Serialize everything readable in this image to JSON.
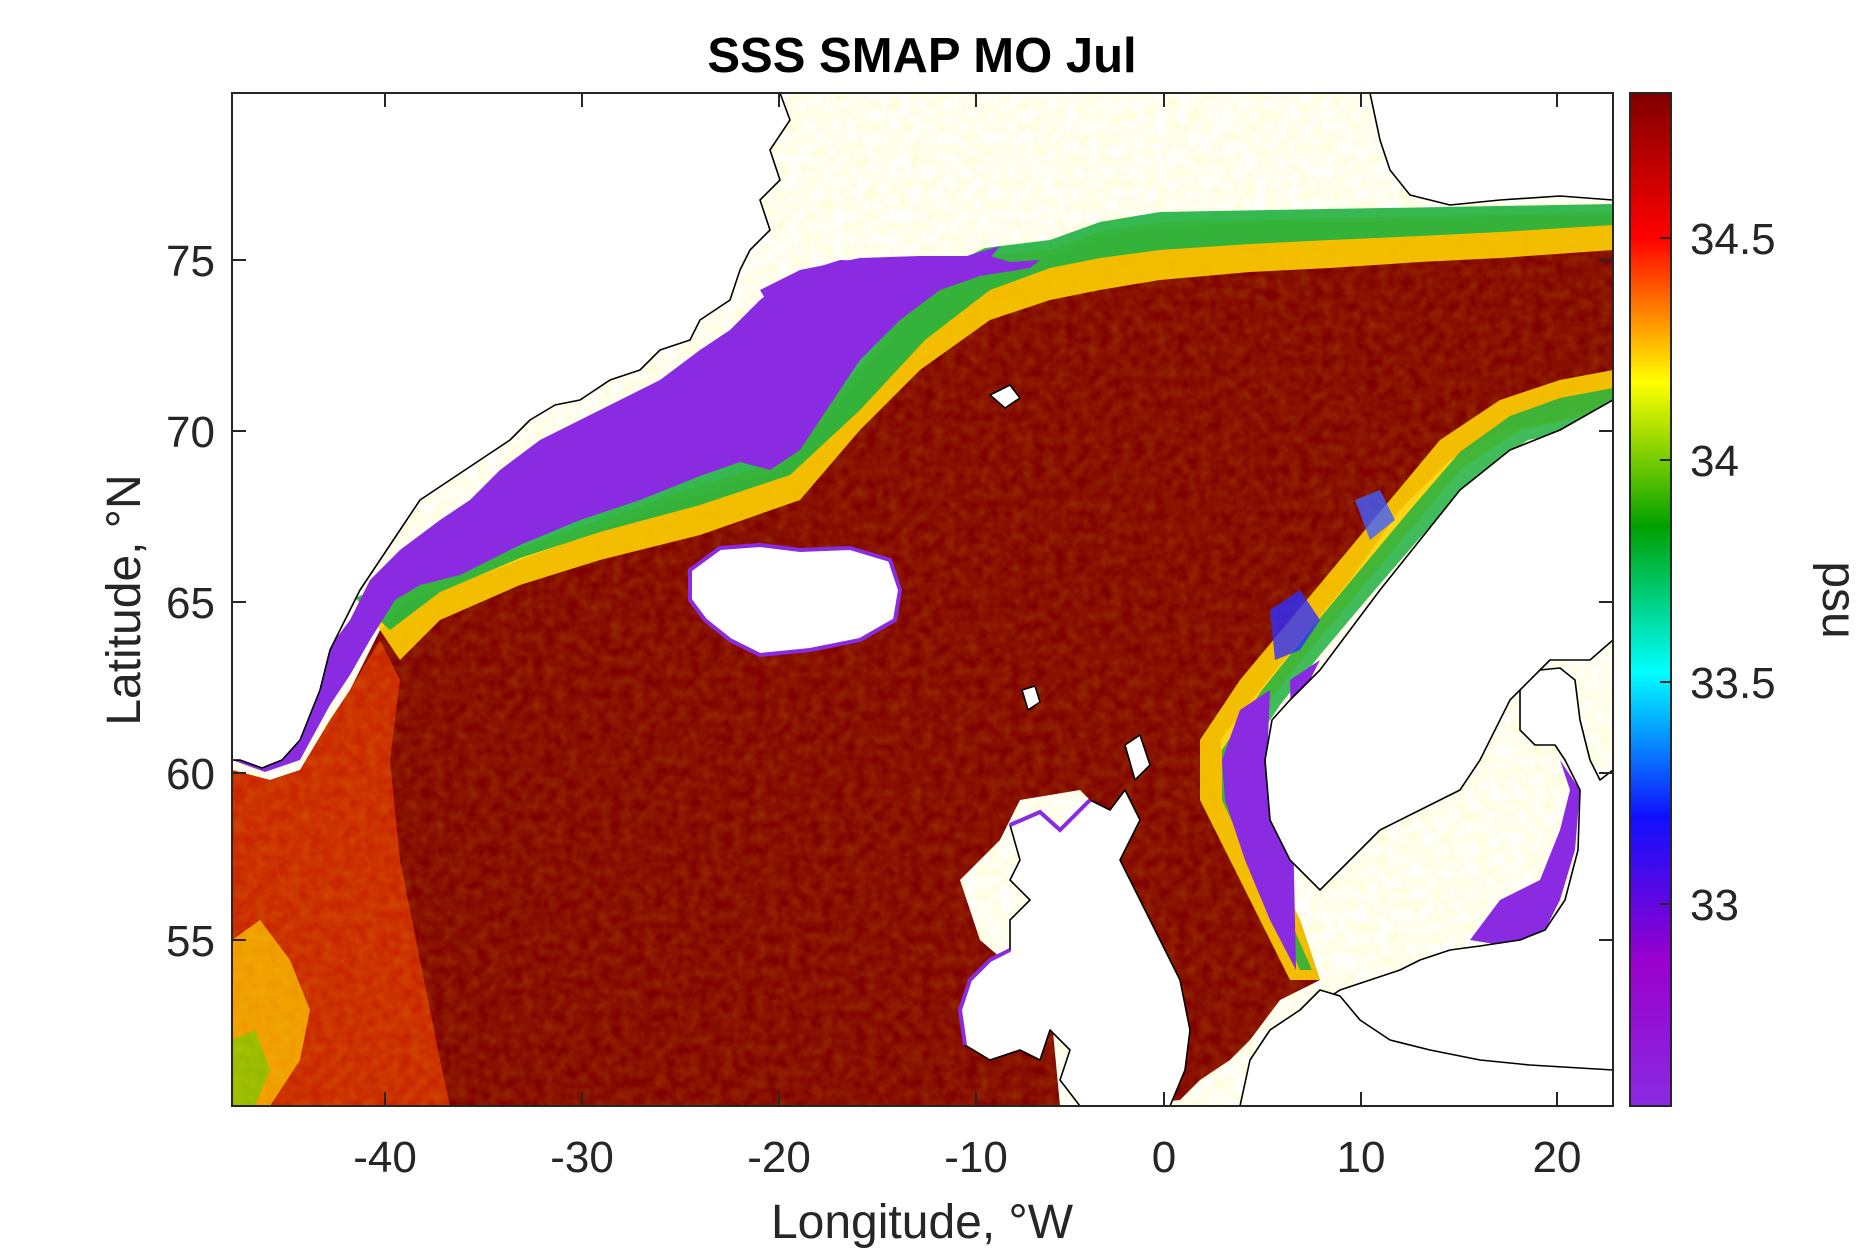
{
  "chart": {
    "title": "SSS SMAP MO Jul",
    "xlabel": "Longitude, °W",
    "ylabel": "Latitude, °N",
    "colorbar_label": "psu"
  },
  "chart_data": {
    "type": "heatmap",
    "title": "SSS SMAP MO Jul",
    "xlabel": "Longitude, °W",
    "ylabel": "Latitude, °N",
    "colorbar_label": "psu",
    "xlim": [
      -47.5,
      22.5
    ],
    "ylim": [
      50.3,
      79.8
    ],
    "x_ticks": [
      -40,
      -30,
      -20,
      -10,
      0,
      10,
      20
    ],
    "x_tick_labels": [
      "-40",
      "-30",
      "-20",
      "-10",
      "0",
      "10",
      "20"
    ],
    "y_ticks": [
      55,
      60,
      65,
      70,
      75
    ],
    "y_tick_labels": [
      "55",
      "60",
      "65",
      "70",
      "75"
    ],
    "color_limits": [
      32.55,
      34.83
    ],
    "colorbar_ticks": [
      33,
      33.5,
      34,
      34.5
    ],
    "colorbar_tick_labels": [
      "33",
      "33.5",
      "34",
      "34.5"
    ],
    "colormap": [
      "#8a2be2",
      "#9900cc",
      "#1010ff",
      "#00ffff",
      "#00a000",
      "#ffff00",
      "#ff0000",
      "#800000"
    ],
    "grid": false,
    "colorbar_position": "right",
    "features": [
      {
        "name": "Greenland East Shelf fresh band",
        "salinity_psu": 32.6
      },
      {
        "name": "Norwegian Coastal Current fresh band",
        "salinity_psu": 32.7
      },
      {
        "name": "Baltic Sea",
        "salinity_psu": 32.6
      },
      {
        "name": "Open North Atlantic and Nordic Seas",
        "salinity_psu": 34.8
      },
      {
        "name": "Labrador Sea / Irminger Basin western edge",
        "salinity_psu": 34.5
      }
    ],
    "land_color": "#ffffff",
    "coastline_color": "#000000"
  },
  "icons": {
    "land": "white-landmass",
    "coast": "black-coastline"
  }
}
